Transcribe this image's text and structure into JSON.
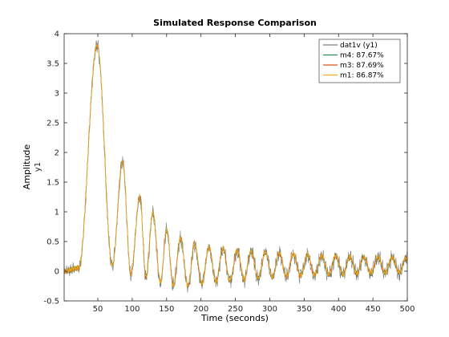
{
  "chart_data": {
    "type": "line",
    "title": "Simulated Response Comparison",
    "xlabel": "Time (seconds)",
    "ylabel": "Amplitude",
    "ylabel_sub": "y1",
    "xlim": [
      1,
      500
    ],
    "ylim": [
      -0.5,
      4
    ],
    "x_ticks": [
      50,
      100,
      150,
      200,
      250,
      300,
      350,
      400,
      450,
      500
    ],
    "y_ticks": [
      -0.5,
      0,
      0.5,
      1,
      1.5,
      2,
      2.5,
      3,
      3.5,
      4
    ],
    "grid": false,
    "legend_position": "top-right",
    "series": [
      {
        "name": "dat1v (y1)",
        "color": "#7f7f7f",
        "kind": "measured"
      },
      {
        "name": "m4: 87.67%",
        "color": "#2e8b57",
        "kind": "model"
      },
      {
        "name": "m3: 87.69%",
        "color": "#d95319",
        "kind": "model"
      },
      {
        "name": "m1: 86.87%",
        "color": "#edb120",
        "kind": "model"
      }
    ],
    "peaks": [
      {
        "x": 49,
        "y": 3.8
      },
      {
        "x": 86,
        "y": 1.85
      },
      {
        "x": 111,
        "y": 1.25
      },
      {
        "x": 130,
        "y": 0.98
      },
      {
        "x": 150,
        "y": 0.68
      },
      {
        "x": 170,
        "y": 0.55
      },
      {
        "x": 191,
        "y": 0.48
      }
    ],
    "troughs": [
      {
        "x": 71,
        "y": 0.1
      },
      {
        "x": 98,
        "y": -0.05
      },
      {
        "x": 120,
        "y": -0.1
      },
      {
        "x": 141,
        "y": -0.2
      },
      {
        "x": 160,
        "y": -0.25
      },
      {
        "x": 181,
        "y": -0.25
      }
    ]
  }
}
